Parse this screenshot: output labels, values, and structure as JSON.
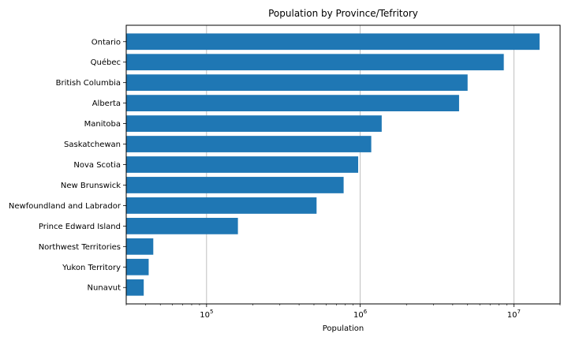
{
  "chart_data": {
    "type": "bar",
    "orientation": "horizontal",
    "title": "Population by Province/Tefritory",
    "xlabel": "Population",
    "ylabel": "",
    "x_scale": "log",
    "xlim": [
      30000,
      20000000
    ],
    "grid": "x-major",
    "bar_color": "#1f77b4",
    "x_ticks": [
      {
        "value": 100000,
        "base": "10",
        "exp": "5"
      },
      {
        "value": 1000000,
        "base": "10",
        "exp": "6"
      },
      {
        "value": 10000000,
        "base": "10",
        "exp": "7"
      }
    ],
    "categories": [
      "Ontario",
      "Québec",
      "British Columbia",
      "Alberta",
      "Manitoba",
      "Saskatchewan",
      "Nova Scotia",
      "New Brunswick",
      "Newfoundland and Labrador",
      "Prince Edward Island",
      "Northwest Territories",
      "Yukon Territory",
      "Nunavut"
    ],
    "values": [
      14700000,
      8600000,
      5000000,
      4400000,
      1380000,
      1180000,
      970000,
      780000,
      520000,
      160000,
      45000,
      42000,
      39000
    ]
  }
}
